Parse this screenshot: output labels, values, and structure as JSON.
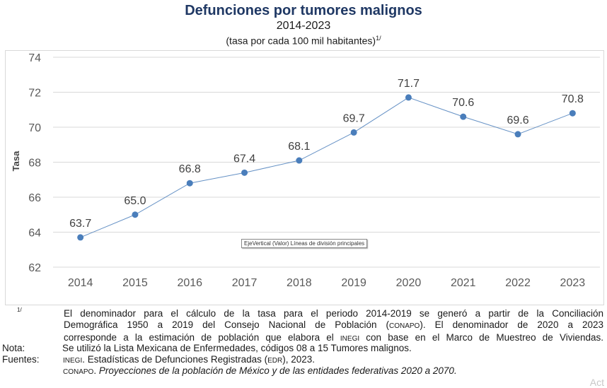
{
  "chart_data": {
    "type": "line",
    "title": "Defunciones por tumores malignos",
    "subtitle": "2014-2023",
    "subtitle2": "(tasa por cada 100 mil habitantes)",
    "subtitle2_sup": "1/",
    "xlabel": "",
    "ylabel": "Tasa",
    "categories": [
      "2014",
      "2015",
      "2016",
      "2017",
      "2018",
      "2019",
      "2020",
      "2021",
      "2022",
      "2023"
    ],
    "series": [
      {
        "name": "Tasa",
        "values": [
          63.7,
          65.0,
          66.8,
          67.4,
          68.1,
          69.7,
          71.7,
          70.6,
          69.6,
          70.8
        ],
        "labels": [
          "63.7",
          "65.0",
          "66.8",
          "67.4",
          "68.1",
          "69.7",
          "71.7",
          "70.6",
          "69.6",
          "70.8"
        ],
        "color": "#4a7ebb"
      }
    ],
    "ylim": [
      62,
      74
    ],
    "yticks": [
      62,
      64,
      66,
      68,
      70,
      72,
      74
    ],
    "grid": true,
    "legend": "none"
  },
  "tooltip": "EjeVertical (Valor)  Líneas de división principales",
  "notes": {
    "footnote_mark": "1/",
    "footnote_lines": [
      "El denominador para el cálculo de la tasa para el periodo 2014-2019 se generó a partir de la Conciliación",
      [
        "Demográfica 1950 a 2019 del Consejo Nacional de Población (",
        "CONAPO",
        "). El denominador de 2020 a 2023"
      ],
      [
        "corresponde a la estimación de población que elabora el ",
        "INEGI",
        " con base en el Marco de Muestreo de Viviendas."
      ]
    ],
    "nota_label": "Nota:",
    "nota_text": "Se utilizó la Lista Mexicana de Enfermedades, códigos 08 a 15 Tumores malignos.",
    "fuentes_label": "Fuentes:",
    "fuente1": {
      "org": "INEGI",
      "text_a": ". Estadísticas de Defunciones Registradas (",
      "abbr": "EDR",
      "text_b": "), 2023."
    },
    "fuente2": {
      "org": "CONAPO",
      "sep": ". ",
      "title": "Proyecciones de la población de México y de las entidades federativas 2020 a 2070",
      "end": "."
    }
  },
  "watermark": "Act"
}
